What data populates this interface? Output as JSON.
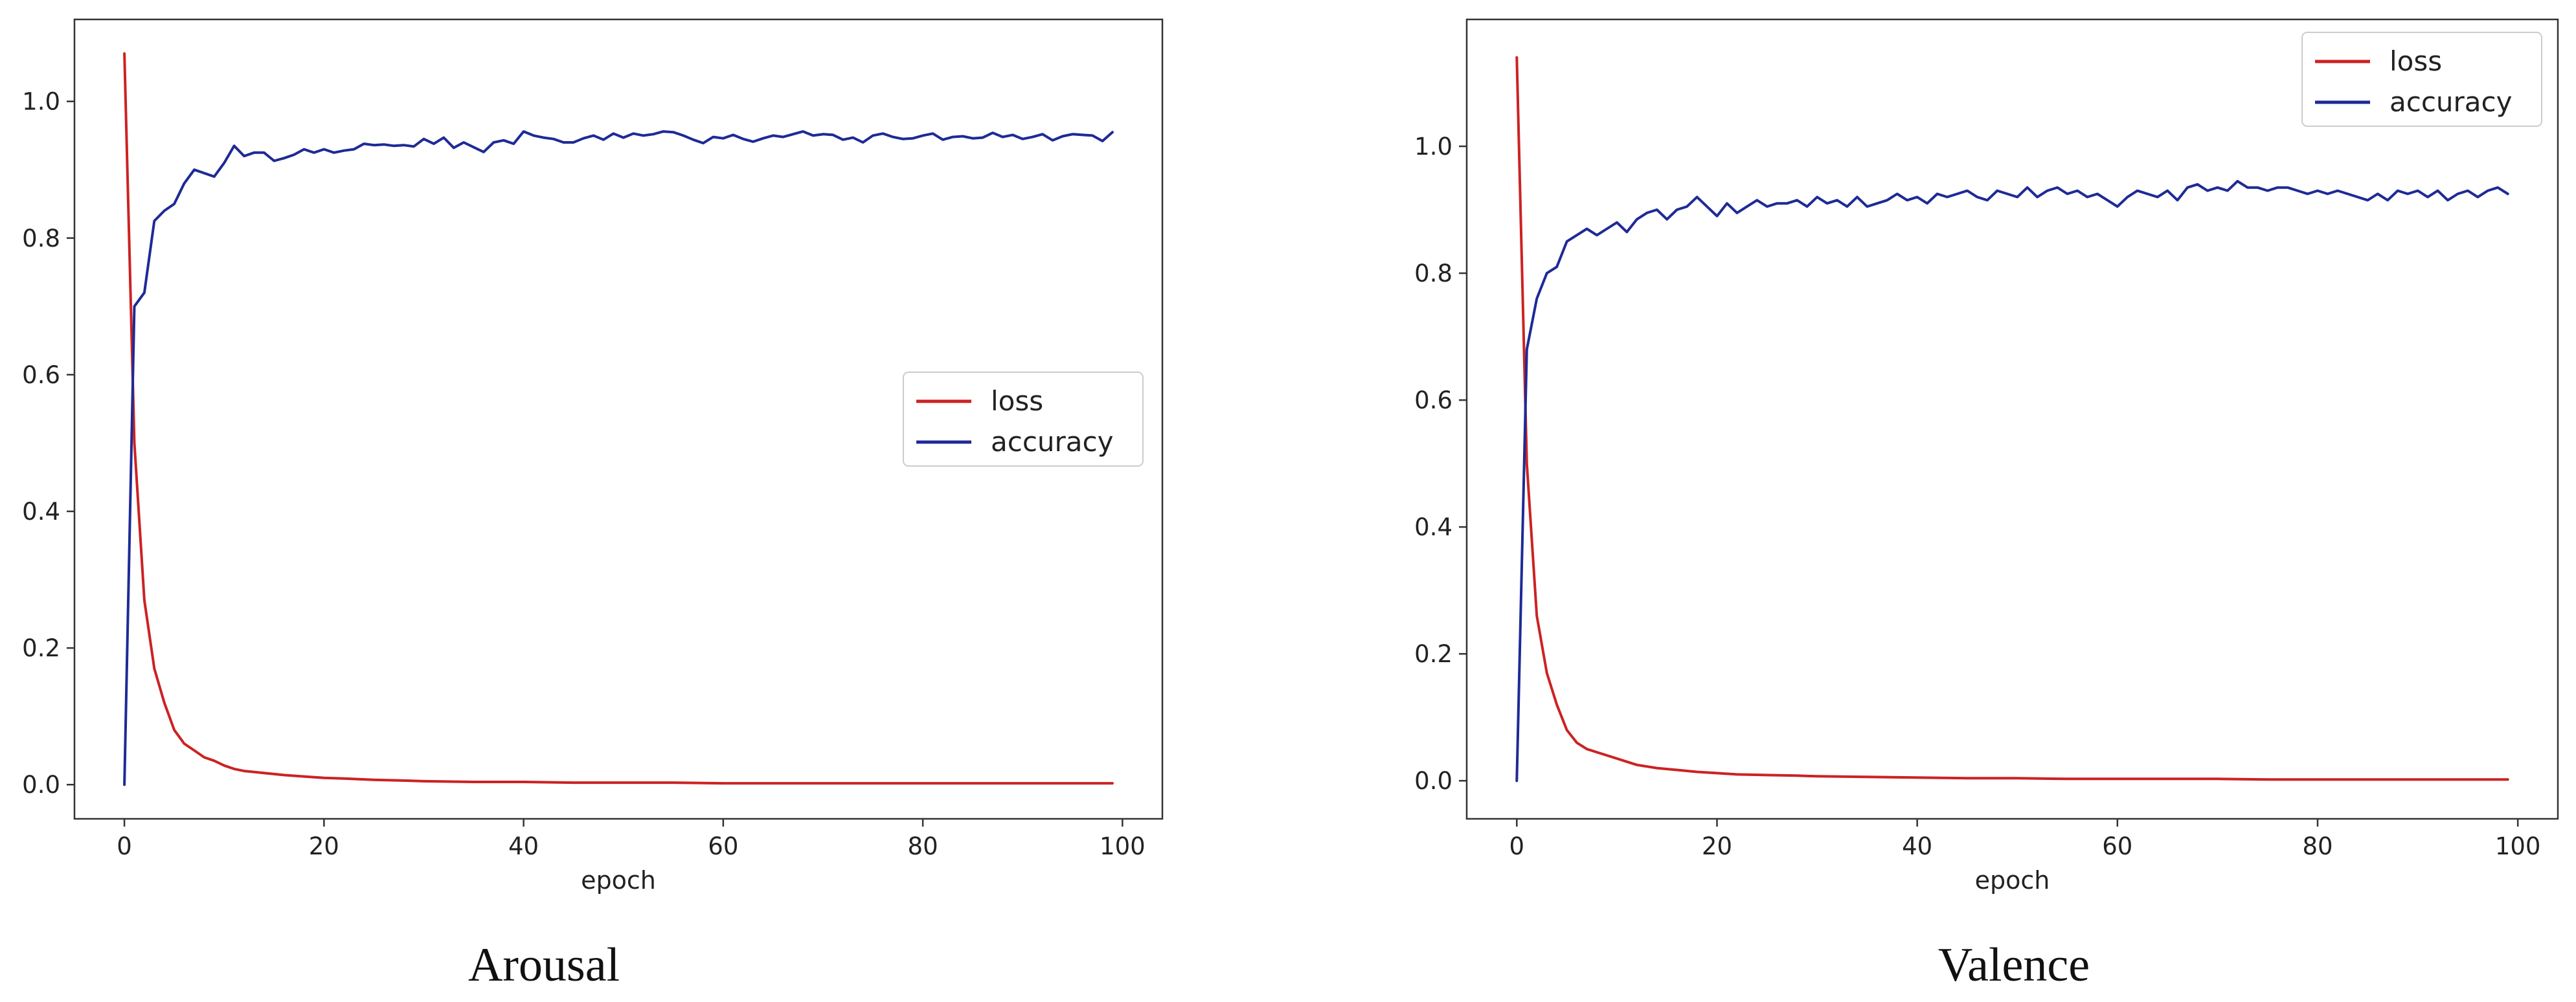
{
  "chart_data": [
    {
      "type": "line",
      "caption": "Arousal",
      "xlabel": "epoch",
      "ylabel": "",
      "xlim": [
        -5,
        104
      ],
      "ylim": [
        -0.05,
        1.12
      ],
      "xticks": [
        "0",
        "20",
        "40",
        "60",
        "80",
        "100"
      ],
      "yticks": [
        "0.0",
        "0.2",
        "0.4",
        "0.6",
        "0.8",
        "1.0"
      ],
      "grid": false,
      "legend_position": "center-right",
      "series": [
        {
          "name": "loss",
          "color": "#cc2222",
          "x": [
            0,
            1,
            2,
            3,
            4,
            5,
            6,
            7,
            8,
            9,
            10,
            11,
            12,
            14,
            16,
            18,
            20,
            22,
            25,
            28,
            30,
            35,
            40,
            45,
            50,
            55,
            60,
            65,
            70,
            75,
            80,
            85,
            90,
            95,
            99
          ],
          "y": [
            1.07,
            0.5,
            0.27,
            0.17,
            0.12,
            0.08,
            0.06,
            0.05,
            0.04,
            0.035,
            0.028,
            0.023,
            0.02,
            0.017,
            0.014,
            0.012,
            0.01,
            0.009,
            0.007,
            0.006,
            0.005,
            0.004,
            0.004,
            0.003,
            0.003,
            0.003,
            0.002,
            0.002,
            0.002,
            0.002,
            0.002,
            0.002,
            0.002,
            0.002,
            0.002
          ]
        },
        {
          "name": "accuracy",
          "color": "#1e2a96",
          "x": [
            0,
            1,
            2,
            3,
            4,
            5,
            6,
            7,
            8,
            9,
            10,
            11,
            12,
            13,
            14,
            15,
            16,
            17,
            18,
            19,
            20,
            21,
            22,
            23,
            24,
            25,
            26,
            27,
            28,
            29,
            30,
            31,
            32,
            33,
            34,
            35,
            36,
            37,
            38,
            39,
            40,
            41,
            42,
            43,
            44,
            45,
            46,
            47,
            48,
            49,
            50,
            51,
            52,
            53,
            54,
            55,
            56,
            57,
            58,
            59,
            60,
            61,
            62,
            63,
            64,
            65,
            66,
            67,
            68,
            69,
            70,
            71,
            72,
            73,
            74,
            75,
            76,
            77,
            78,
            79,
            80,
            81,
            82,
            83,
            84,
            85,
            86,
            87,
            88,
            89,
            90,
            91,
            92,
            93,
            94,
            95,
            96,
            97,
            98,
            99
          ],
          "y": [
            0.0,
            0.7,
            0.72,
            0.825,
            0.84,
            0.85,
            0.88,
            0.9,
            0.895,
            0.89,
            0.91,
            0.935,
            0.92,
            0.925,
            0.925,
            0.913,
            0.917,
            0.922,
            0.93,
            0.925,
            0.93,
            0.925,
            0.928,
            0.93,
            0.938,
            0.936,
            0.937,
            0.935,
            0.936,
            0.934,
            0.945,
            0.938,
            0.947,
            0.932,
            0.94,
            0.933,
            0.926,
            0.94,
            0.943,
            0.938,
            0.956,
            0.95,
            0.947,
            0.945,
            0.94,
            0.94,
            0.946,
            0.95,
            0.944,
            0.953,
            0.947,
            0.953,
            0.95,
            0.952,
            0.956,
            0.955,
            0.95,
            0.944,
            0.939,
            0.948,
            0.946,
            0.951,
            0.945,
            0.941,
            0.946,
            0.95,
            0.948,
            0.952,
            0.956,
            0.95,
            0.952,
            0.951,
            0.944,
            0.947,
            0.94,
            0.95,
            0.953,
            0.948,
            0.945,
            0.946,
            0.95,
            0.953,
            0.944,
            0.948,
            0.949,
            0.946,
            0.947,
            0.954,
            0.948,
            0.951,
            0.945,
            0.948,
            0.952,
            0.943,
            0.949,
            0.952,
            0.951,
            0.95,
            0.942,
            0.955
          ]
        }
      ]
    },
    {
      "type": "line",
      "caption": "Valence",
      "xlabel": "epoch",
      "ylabel": "",
      "xlim": [
        -5,
        104
      ],
      "ylim": [
        -0.06,
        1.2
      ],
      "xticks": [
        "0",
        "20",
        "40",
        "60",
        "80",
        "100"
      ],
      "yticks": [
        "0.0",
        "0.2",
        "0.4",
        "0.6",
        "0.8",
        "1.0"
      ],
      "grid": false,
      "legend_position": "top-right",
      "series": [
        {
          "name": "loss",
          "color": "#cc2222",
          "x": [
            0,
            1,
            2,
            3,
            4,
            5,
            6,
            7,
            8,
            9,
            10,
            11,
            12,
            14,
            16,
            18,
            20,
            22,
            25,
            28,
            30,
            35,
            40,
            45,
            50,
            55,
            60,
            65,
            70,
            75,
            80,
            85,
            90,
            95,
            99
          ],
          "y": [
            1.14,
            0.5,
            0.26,
            0.17,
            0.12,
            0.08,
            0.06,
            0.05,
            0.045,
            0.04,
            0.035,
            0.03,
            0.025,
            0.02,
            0.017,
            0.014,
            0.012,
            0.01,
            0.009,
            0.008,
            0.007,
            0.006,
            0.005,
            0.004,
            0.004,
            0.003,
            0.003,
            0.003,
            0.003,
            0.002,
            0.002,
            0.002,
            0.002,
            0.002,
            0.002
          ]
        },
        {
          "name": "accuracy",
          "color": "#1e2a96",
          "x": [
            0,
            1,
            2,
            3,
            4,
            5,
            6,
            7,
            8,
            9,
            10,
            11,
            12,
            13,
            14,
            15,
            16,
            17,
            18,
            19,
            20,
            21,
            22,
            23,
            24,
            25,
            26,
            27,
            28,
            29,
            30,
            31,
            32,
            33,
            34,
            35,
            36,
            37,
            38,
            39,
            40,
            41,
            42,
            43,
            44,
            45,
            46,
            47,
            48,
            49,
            50,
            51,
            52,
            53,
            54,
            55,
            56,
            57,
            58,
            59,
            60,
            61,
            62,
            63,
            64,
            65,
            66,
            67,
            68,
            69,
            70,
            71,
            72,
            73,
            74,
            75,
            76,
            77,
            78,
            79,
            80,
            81,
            82,
            83,
            84,
            85,
            86,
            87,
            88,
            89,
            90,
            91,
            92,
            93,
            94,
            95,
            96,
            97,
            98,
            99
          ],
          "y": [
            0.0,
            0.68,
            0.76,
            0.8,
            0.81,
            0.85,
            0.86,
            0.87,
            0.86,
            0.87,
            0.88,
            0.865,
            0.885,
            0.895,
            0.9,
            0.885,
            0.9,
            0.905,
            0.92,
            0.905,
            0.89,
            0.91,
            0.895,
            0.905,
            0.915,
            0.905,
            0.91,
            0.91,
            0.915,
            0.905,
            0.92,
            0.91,
            0.915,
            0.905,
            0.92,
            0.905,
            0.91,
            0.915,
            0.925,
            0.915,
            0.92,
            0.91,
            0.925,
            0.92,
            0.925,
            0.93,
            0.92,
            0.915,
            0.93,
            0.925,
            0.92,
            0.935,
            0.92,
            0.93,
            0.935,
            0.925,
            0.93,
            0.92,
            0.925,
            0.915,
            0.905,
            0.92,
            0.93,
            0.925,
            0.92,
            0.93,
            0.915,
            0.935,
            0.94,
            0.93,
            0.935,
            0.93,
            0.945,
            0.935,
            0.935,
            0.93,
            0.935,
            0.935,
            0.93,
            0.925,
            0.93,
            0.925,
            0.93,
            0.925,
            0.92,
            0.915,
            0.925,
            0.915,
            0.93,
            0.925,
            0.93,
            0.92,
            0.93,
            0.915,
            0.925,
            0.93,
            0.92,
            0.93,
            0.935,
            0.925
          ]
        }
      ]
    }
  ]
}
